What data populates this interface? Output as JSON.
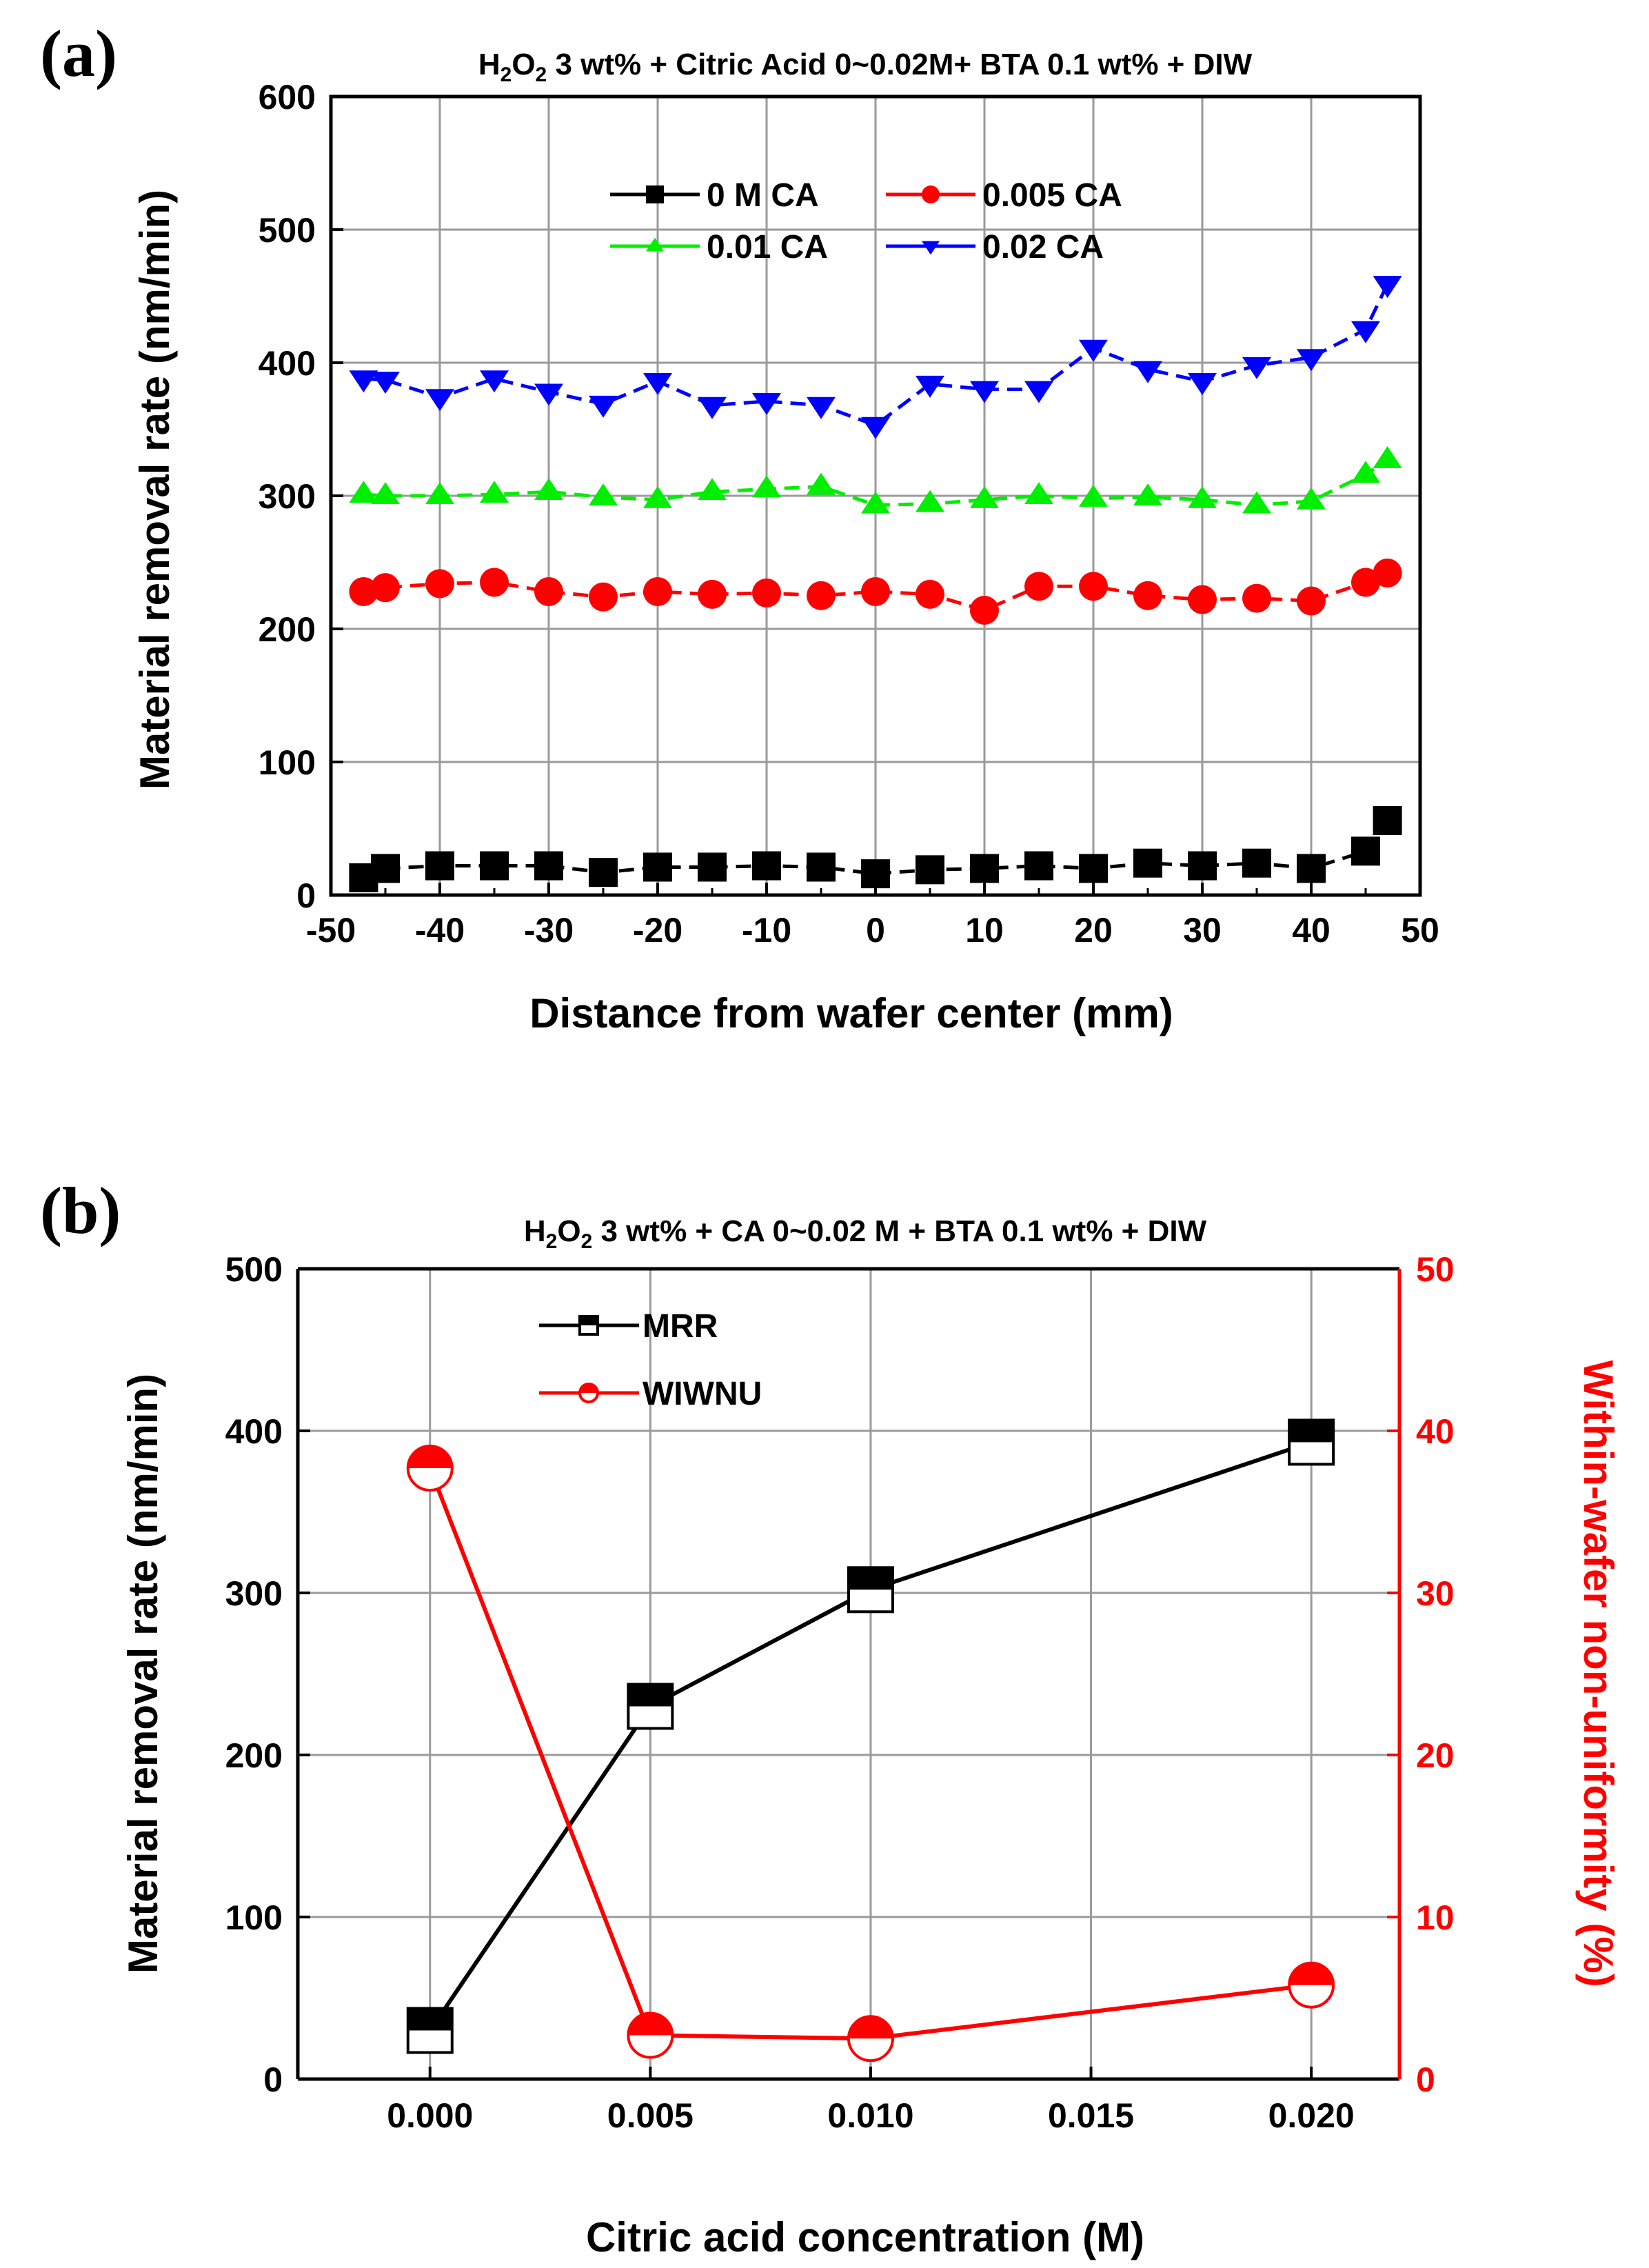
{
  "chart_data": [
    {
      "panel": "(a)",
      "type": "line",
      "title": {
        "main": "H",
        "s1": "2",
        "mid": "O",
        "s2": "2",
        "rest": " 3 wt% + Citric Acid 0~0.02M+ BTA 0.1 wt% + DIW"
      },
      "xlabel": "Distance from wafer center (mm)",
      "ylabel": "Material removal rate (nm/min)",
      "xlim": [
        -50,
        50
      ],
      "ylim": [
        0,
        600
      ],
      "xticks": [
        "-50",
        "-40",
        "-30",
        "-20",
        "-10",
        "0",
        "10",
        "20",
        "30",
        "40",
        "50"
      ],
      "yticks": [
        "0",
        "100",
        "200",
        "300",
        "400",
        "500",
        "600"
      ],
      "grid": true,
      "legend_position": "top-center",
      "x": [
        -47,
        -45,
        -40,
        -35,
        -30,
        -25,
        -20,
        -15,
        -10,
        -5,
        0,
        5,
        10,
        15,
        20,
        25,
        30,
        35,
        40,
        45,
        47
      ],
      "series": [
        {
          "name": "0 M CA",
          "marker": "square",
          "color": "#000000",
          "values": [
            13,
            20,
            22,
            22,
            22,
            17,
            21,
            21,
            22,
            21,
            16,
            19,
            20,
            22,
            20,
            24,
            22,
            24,
            20,
            33,
            56
          ]
        },
        {
          "name": "0.005 CA",
          "marker": "circle",
          "color": "#ff0000",
          "values": [
            228,
            231,
            234,
            235,
            228,
            224,
            228,
            226,
            227,
            225,
            228,
            226,
            214,
            232,
            232,
            225,
            222,
            223,
            221,
            235,
            242
          ]
        },
        {
          "name": "0.01 CA",
          "marker": "triangle-up",
          "color": "#00ee00",
          "values": [
            301,
            300,
            300,
            301,
            303,
            299,
            297,
            303,
            305,
            307,
            293,
            294,
            297,
            300,
            298,
            299,
            297,
            293,
            296,
            316,
            327
          ]
        },
        {
          "name": "0.02 CA",
          "marker": "triangle-down",
          "color": "#0000ff",
          "values": [
            388,
            387,
            374,
            388,
            378,
            369,
            386,
            368,
            371,
            368,
            353,
            384,
            380,
            380,
            411,
            395,
            386,
            398,
            404,
            425,
            459
          ]
        }
      ]
    },
    {
      "panel": "(b)",
      "type": "line",
      "title": {
        "main": "H",
        "s1": "2",
        "mid": "O",
        "s2": "2",
        "rest": " 3 wt% + CA 0~0.02 M + BTA 0.1 wt% + DIW"
      },
      "xlabel": "Citric acid concentration (M)",
      "ylabel": "Material removal rate (nm/min)",
      "y2label": "Within-wafer non-uniformity (%)",
      "xlim": [
        -0.003,
        0.022
      ],
      "ylim": [
        0,
        500
      ],
      "y2lim": [
        0,
        50
      ],
      "xticks": [
        "0.000",
        "0.005",
        "0.010",
        "0.015",
        "0.020"
      ],
      "yticks": [
        "0",
        "100",
        "200",
        "300",
        "400",
        "500"
      ],
      "y2ticks": [
        "0",
        "10",
        "20",
        "30",
        "40",
        "50"
      ],
      "grid": true,
      "legend_position": "top-left",
      "x": [
        0.0,
        0.005,
        0.01,
        0.02
      ],
      "series": [
        {
          "name": "MRR",
          "axis": "left",
          "marker": "half-filled-square",
          "color": "#000000",
          "values": [
            30,
            230,
            302,
            393
          ]
        },
        {
          "name": "WIWNU",
          "axis": "right",
          "marker": "half-filled-circle",
          "color": "#ff0000",
          "values": [
            37.7,
            2.7,
            2.5,
            5.8
          ]
        }
      ]
    }
  ]
}
